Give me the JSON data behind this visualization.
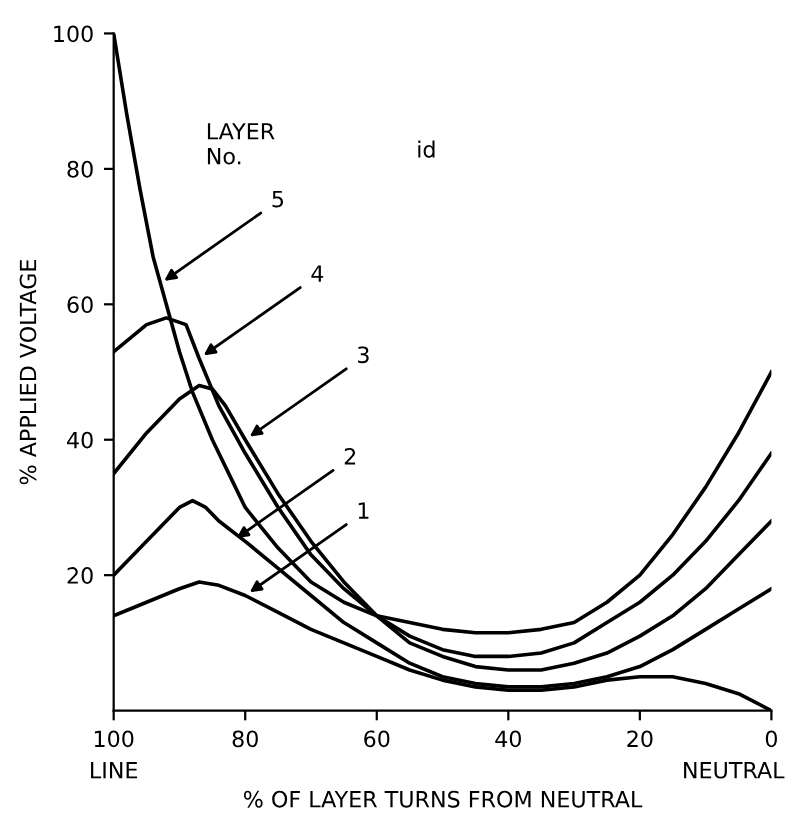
{
  "chart_data": {
    "type": "line",
    "xlabel": "% OF LAYER TURNS FROM NEUTRAL",
    "ylabel": "% APPLIED VOLTAGE",
    "xlim": [
      100,
      0
    ],
    "xticks": [
      100,
      80,
      60,
      40,
      20,
      0
    ],
    "ylim": [
      0,
      100
    ],
    "yticks": [
      20,
      40,
      60,
      80,
      100
    ],
    "grid": false,
    "legend": false,
    "marker": "none",
    "line_style": "solid",
    "series": [
      {
        "color": "#000000",
        "x": [
          100,
          95,
          90,
          87,
          84,
          80,
          75,
          70,
          65,
          60,
          55,
          50,
          45,
          40,
          35,
          30,
          25,
          20,
          15,
          10,
          5,
          0
        ],
        "values": [
          14,
          16,
          18,
          19,
          18.5,
          17,
          14.5,
          12,
          10,
          8,
          6,
          4.5,
          3.5,
          3,
          3,
          3.5,
          4.5,
          5,
          5,
          4,
          2.5,
          0
        ]
      },
      {
        "color": "#000000",
        "x": [
          100,
          95,
          90,
          88,
          86,
          84,
          80,
          75,
          70,
          65,
          60,
          55,
          50,
          45,
          40,
          35,
          30,
          25,
          20,
          15,
          10,
          5,
          0
        ],
        "values": [
          20,
          25,
          30,
          31,
          30,
          28,
          25,
          21,
          17,
          13,
          10,
          7,
          5,
          4,
          3.5,
          3.5,
          4,
          5,
          6.5,
          9,
          12,
          15,
          18
        ]
      },
      {
        "color": "#000000",
        "x": [
          100,
          95,
          90,
          87,
          85,
          83,
          80,
          75,
          70,
          65,
          60,
          55,
          50,
          45,
          40,
          35,
          30,
          25,
          20,
          15,
          10,
          5,
          0
        ],
        "values": [
          35,
          41,
          46,
          48,
          47.5,
          45,
          40,
          32,
          25,
          19,
          14,
          10,
          8,
          6.5,
          6,
          6,
          7,
          8.5,
          11,
          14,
          18,
          23,
          28
        ]
      },
      {
        "color": "#000000",
        "x": [
          100,
          95,
          92,
          89,
          87,
          84,
          80,
          75,
          70,
          65,
          60,
          55,
          50,
          45,
          40,
          35,
          30,
          25,
          20,
          15,
          10,
          5,
          0
        ],
        "values": [
          53,
          57,
          58,
          57,
          52,
          45,
          38,
          30,
          23,
          18,
          14,
          11,
          9,
          8,
          8,
          8.5,
          10,
          13,
          16,
          20,
          25,
          31,
          38
        ]
      },
      {
        "color": "#000000",
        "x": [
          100,
          98,
          96,
          94,
          92,
          90,
          88,
          85,
          82,
          80,
          75,
          70,
          65,
          60,
          55,
          50,
          45,
          40,
          35,
          30,
          25,
          20,
          15,
          10,
          5,
          0
        ],
        "values": [
          100,
          88,
          77,
          67,
          60,
          53,
          47,
          40,
          34,
          30,
          24,
          19,
          16,
          14,
          13,
          12,
          11.5,
          11.5,
          12,
          13,
          16,
          20,
          26,
          33,
          41,
          50
        ]
      }
    ],
    "annotations": [
      {
        "text": "1",
        "x": 80,
        "y": 17
      },
      {
        "text": "2",
        "x": 82,
        "y": 25
      },
      {
        "text": "3",
        "x": 80,
        "y": 40
      },
      {
        "text": "4",
        "x": 87,
        "y": 52
      },
      {
        "text": "5",
        "x": 93,
        "y": 63
      },
      "LAYER\nNo.",
      "id",
      "LINE",
      "NEUTRAL"
    ]
  }
}
